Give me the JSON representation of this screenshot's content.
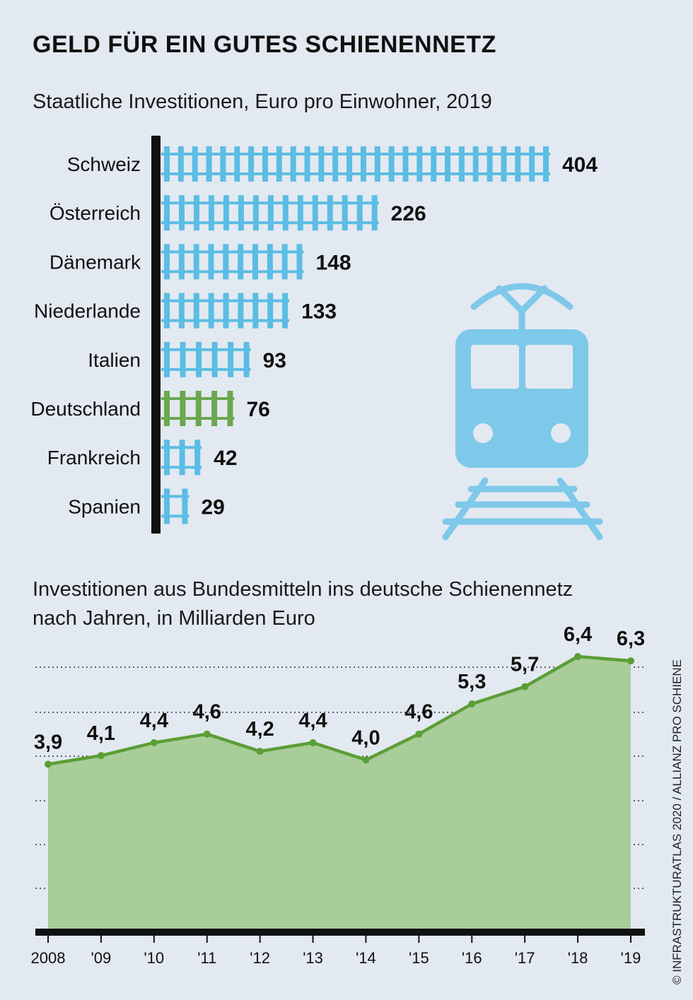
{
  "title": "GELD FÜR EIN GUTES SCHIENENNETZ",
  "credit": "© INFRASTRUKTURATLAS 2020 / ALLIANZ PRO SCHIENE",
  "colors": {
    "blue": "#5bbde3",
    "green": "#6aa84f",
    "area": "#a8cd98",
    "line": "#5c9e36",
    "axis": "#111111",
    "icon": "#7ec8e9"
  },
  "icon": "train-icon",
  "chart_data": [
    {
      "type": "bar",
      "title": "Staatliche Investitionen, Euro pro Einwohner, 2019",
      "categories": [
        "Schweiz",
        "Österreich",
        "Dänemark",
        "Niederlande",
        "Italien",
        "Deutschland",
        "Frankreich",
        "Spanien"
      ],
      "values": [
        404,
        226,
        148,
        133,
        93,
        76,
        42,
        29
      ],
      "highlight": "Deutschland",
      "xlim": [
        0,
        404
      ]
    },
    {
      "type": "area",
      "title": "Investitionen aus Bundesmitteln ins deutsche Schienennetz\nnach Jahren, in Milliarden Euro",
      "categories": [
        "2008",
        "'09",
        "'10",
        "'11",
        "'12",
        "'13",
        "'14",
        "'15",
        "'16",
        "'17",
        "'18",
        "'19"
      ],
      "values": [
        3.9,
        4.1,
        4.4,
        4.6,
        4.2,
        4.4,
        4.0,
        4.6,
        5.3,
        5.7,
        6.4,
        6.3
      ],
      "value_labels": [
        "3,9",
        "4,1",
        "4,4",
        "4,6",
        "4,2",
        "4,4",
        "4,0",
        "4,6",
        "5,3",
        "5,7",
        "6,4",
        "6,3"
      ],
      "ylim": [
        0,
        6.4
      ],
      "grid": true
    }
  ]
}
